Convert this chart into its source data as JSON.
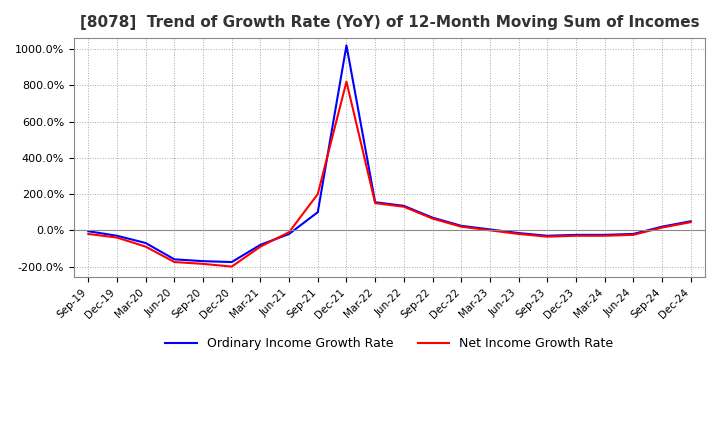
{
  "title": "[8078]  Trend of Growth Rate (YoY) of 12-Month Moving Sum of Incomes",
  "ylim": [
    -260,
    1060
  ],
  "yticks": [
    -200,
    0,
    200,
    400,
    600,
    800,
    1000
  ],
  "ytick_labels": [
    "-200.0%",
    "0.0%",
    "200.0%",
    "400.0%",
    "600.0%",
    "800.0%",
    "1000.0%"
  ],
  "legend": [
    "Ordinary Income Growth Rate",
    "Net Income Growth Rate"
  ],
  "line_colors": [
    "#0000ff",
    "#ff0000"
  ],
  "background_color": "#ffffff",
  "grid_color": "#aaaaaa",
  "x_labels": [
    "Sep-19",
    "Dec-19",
    "Mar-20",
    "Jun-20",
    "Sep-20",
    "Dec-20",
    "Mar-21",
    "Jun-21",
    "Sep-21",
    "Dec-21",
    "Mar-22",
    "Jun-22",
    "Sep-22",
    "Dec-22",
    "Mar-23",
    "Jun-23",
    "Sep-23",
    "Dec-23",
    "Mar-24",
    "Jun-24",
    "Sep-24",
    "Dec-24"
  ],
  "ordinary_income": [
    -5,
    -30,
    -70,
    -160,
    -170,
    -175,
    -80,
    -20,
    100,
    1020,
    155,
    135,
    70,
    25,
    5,
    -15,
    -30,
    -25,
    -25,
    -20,
    20,
    50
  ],
  "net_income": [
    -20,
    -40,
    -90,
    -175,
    -185,
    -200,
    -90,
    -10,
    200,
    820,
    150,
    130,
    65,
    20,
    0,
    -20,
    -35,
    -30,
    -30,
    -25,
    15,
    45
  ]
}
